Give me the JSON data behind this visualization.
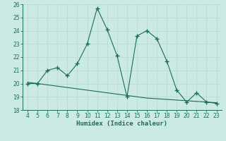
{
  "x": [
    4,
    5,
    6,
    7,
    8,
    9,
    10,
    11,
    12,
    13,
    14,
    15,
    16,
    17,
    18,
    19,
    20,
    21,
    22,
    23
  ],
  "y_main": [
    20.0,
    20.0,
    21.0,
    21.2,
    20.6,
    21.5,
    23.0,
    25.7,
    24.1,
    22.1,
    19.0,
    23.6,
    24.0,
    23.4,
    21.7,
    19.5,
    18.6,
    19.3,
    18.6,
    18.5
  ],
  "y_trend": [
    20.1,
    20.0,
    19.9,
    19.8,
    19.7,
    19.6,
    19.5,
    19.4,
    19.3,
    19.2,
    19.1,
    19.0,
    18.9,
    18.85,
    18.8,
    18.75,
    18.7,
    18.65,
    18.6,
    18.55
  ],
  "xlim": [
    3.5,
    23.5
  ],
  "ylim": [
    18,
    26
  ],
  "yticks": [
    18,
    19,
    20,
    21,
    22,
    23,
    24,
    25,
    26
  ],
  "xticks": [
    4,
    5,
    6,
    7,
    8,
    9,
    10,
    11,
    12,
    13,
    14,
    15,
    16,
    17,
    18,
    19,
    20,
    21,
    22,
    23
  ],
  "xlabel": "Humidex (Indice chaleur)",
  "line_color": "#1a6b5a",
  "bg_color": "#cceae4",
  "grid_color": "#b8d8d0",
  "marker": "+",
  "marker_size": 4,
  "linewidth": 1.0,
  "tick_fontsize": 5.5,
  "label_fontsize": 6.5
}
